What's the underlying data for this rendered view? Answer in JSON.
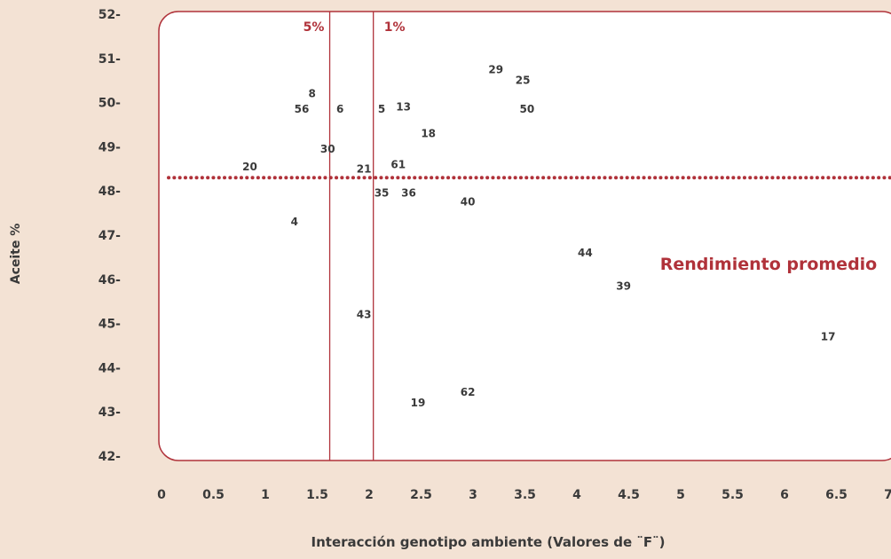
{
  "chart_data": {
    "type": "scatter",
    "title": "",
    "xlabel": "Interacción genotipo ambiente (Valores de ¨F¨)",
    "ylabel": "Aceite %",
    "xlim": [
      0,
      7
    ],
    "ylim": [
      42,
      52
    ],
    "x_ticks": [
      "0",
      "0.5",
      "1",
      "1.5",
      "2",
      "2.5",
      "3",
      "3.5",
      "4",
      "4.5",
      "5",
      "5.5",
      "6",
      "6.5",
      "7"
    ],
    "y_ticks": [
      "42-",
      "43-",
      "44-",
      "45-",
      "46-",
      "47-",
      "48-",
      "49-",
      "50-",
      "51-",
      "52-"
    ],
    "points": [
      {
        "label": "8",
        "x": 1.45,
        "y": 50.2
      },
      {
        "label": "56",
        "x": 1.35,
        "y": 49.85
      },
      {
        "label": "6",
        "x": 1.72,
        "y": 49.85
      },
      {
        "label": "5",
        "x": 2.12,
        "y": 49.85
      },
      {
        "label": "13",
        "x": 2.33,
        "y": 49.9
      },
      {
        "label": "29",
        "x": 3.22,
        "y": 50.75
      },
      {
        "label": "25",
        "x": 3.48,
        "y": 50.5
      },
      {
        "label": "50",
        "x": 3.52,
        "y": 49.85
      },
      {
        "label": "18",
        "x": 2.57,
        "y": 49.3
      },
      {
        "label": "30",
        "x": 1.6,
        "y": 48.95
      },
      {
        "label": "20",
        "x": 0.85,
        "y": 48.55
      },
      {
        "label": "21",
        "x": 1.95,
        "y": 48.5
      },
      {
        "label": "61",
        "x": 2.28,
        "y": 48.6
      },
      {
        "label": "35",
        "x": 2.12,
        "y": 47.95
      },
      {
        "label": "36",
        "x": 2.38,
        "y": 47.95
      },
      {
        "label": "40",
        "x": 2.95,
        "y": 47.75
      },
      {
        "label": "4",
        "x": 1.28,
        "y": 47.3
      },
      {
        "label": "44",
        "x": 4.08,
        "y": 46.6
      },
      {
        "label": "39",
        "x": 4.45,
        "y": 45.85
      },
      {
        "label": "43",
        "x": 1.95,
        "y": 45.2
      },
      {
        "label": "17",
        "x": 6.42,
        "y": 44.7
      },
      {
        "label": "62",
        "x": 2.95,
        "y": 43.45
      },
      {
        "label": "19",
        "x": 2.47,
        "y": 43.2
      }
    ],
    "reference_lines": [
      {
        "orientation": "vertical",
        "x": 1.62,
        "label": "5%",
        "style": "solid"
      },
      {
        "orientation": "vertical",
        "x": 2.04,
        "label": "1%",
        "style": "solid"
      },
      {
        "orientation": "horizontal",
        "y": 48.3,
        "label": "Rendimiento promedio",
        "style": "dotted"
      }
    ],
    "colors": {
      "background": "#f3e2d4",
      "plot_area": "#ffffff",
      "accent": "#b0323a",
      "text": "#3a3a3a"
    },
    "grid": false,
    "legend": "none"
  }
}
